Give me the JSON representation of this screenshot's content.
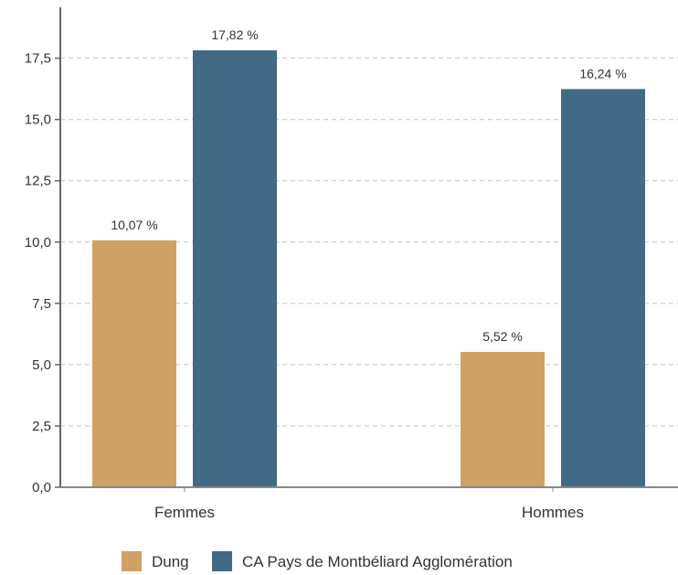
{
  "chart_data": {
    "type": "bar",
    "categories": [
      "Femmes",
      "Hommes"
    ],
    "series": [
      {
        "name": "Dung",
        "color": "#cea265",
        "values": [
          10.07,
          5.52
        ],
        "labels": [
          "10,07 %",
          "5,52 %"
        ]
      },
      {
        "name": "CA Pays de Montbéliard Agglomération",
        "color": "#436a84",
        "values": [
          17.82,
          16.24
        ],
        "labels": [
          "17,82 %",
          "16,24 %"
        ]
      }
    ],
    "ylim": [
      0,
      19.5
    ],
    "yticks": [
      0,
      2.5,
      5,
      7.5,
      10,
      12.5,
      15,
      17.5
    ],
    "ytick_labels": [
      "0,0",
      "2,5",
      "5,0",
      "7,5",
      "10,0",
      "12,5",
      "15,0",
      "17,5"
    ],
    "grid": true,
    "legend_position": "bottom-center"
  }
}
